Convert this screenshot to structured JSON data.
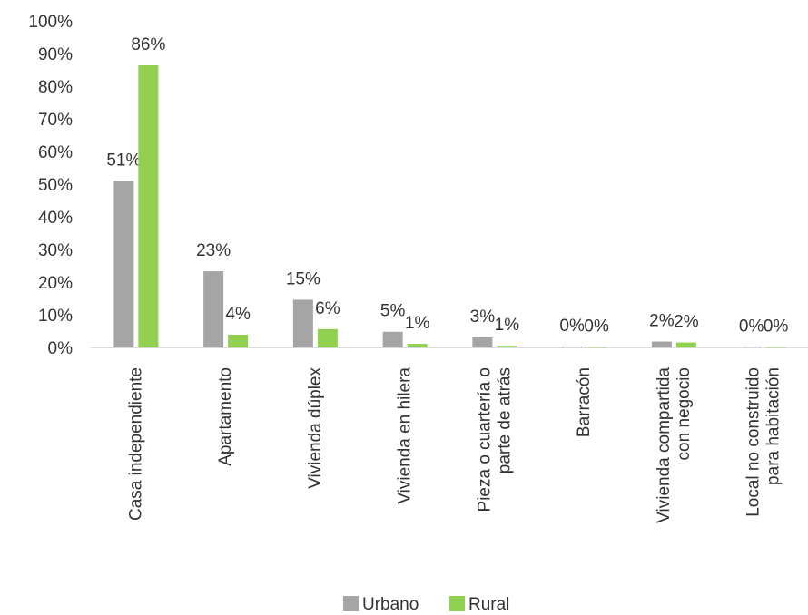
{
  "chart_data": {
    "type": "bar",
    "title": "",
    "xlabel": "",
    "ylabel": "",
    "ylim": [
      0,
      100
    ],
    "y_ticks": [
      "0%",
      "10%",
      "20%",
      "30%",
      "40%",
      "50%",
      "60%",
      "70%",
      "80%",
      "90%",
      "100%"
    ],
    "grid": false,
    "legend_position": "bottom",
    "categories": [
      [
        "Casa independiente"
      ],
      [
        "Apartamento"
      ],
      [
        "Vivienda dúplex"
      ],
      [
        "Vivienda en hilera"
      ],
      [
        "Pieza o cuartería o",
        "parte de atrás"
      ],
      [
        "Barracón"
      ],
      [
        "Vivienda compartida",
        "con negocio"
      ],
      [
        "Local no construido",
        "para habitación"
      ]
    ],
    "series": [
      {
        "name": "Urbano",
        "color": "#a5a5a5",
        "values": [
          51,
          23.3,
          14.6,
          4.8,
          3.1,
          0.3,
          1.8,
          0.2
        ],
        "labels": [
          "51%",
          "23%",
          "15%",
          "5%",
          "3%",
          "0%",
          "2%",
          "0%"
        ]
      },
      {
        "name": "Rural",
        "color": "#92d050",
        "values": [
          86.4,
          3.9,
          5.6,
          1.1,
          0.5,
          0.1,
          1.5,
          0.1
        ],
        "labels": [
          "86%",
          "4%",
          "6%",
          "1%",
          "1%",
          "0%",
          "2%",
          "0%"
        ]
      }
    ]
  }
}
